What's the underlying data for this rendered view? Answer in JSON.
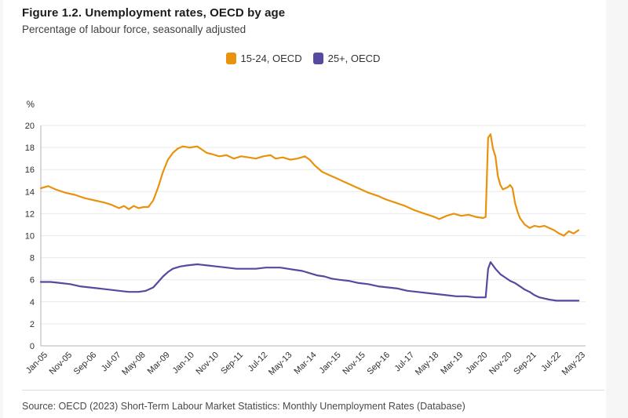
{
  "header": {
    "title": "Figure 1.2. Unemployment rates, OECD by age",
    "subtitle": "Percentage of labour force, seasonally adjusted"
  },
  "legend": {
    "items": [
      {
        "label": "15-24, OECD",
        "color": "#e8920d"
      },
      {
        "label": "25+, OECD",
        "color": "#544a9f"
      }
    ]
  },
  "source": "Source: OECD (2023) Short-Term Labour Market Statistics: Monthly Unemployment Rates (Database)",
  "colors": {
    "grid": "#e9e9e9",
    "axis": "#b3b3b3",
    "tick_text": "#2e2e2e",
    "page_margin": "#f6f6f6"
  },
  "chart_data": {
    "type": "line",
    "title": "Figure 1.2. Unemployment rates, OECD by age",
    "subtitle": "Percentage of labour force, seasonally adjusted",
    "ylabel": "%",
    "ylim": [
      0,
      20
    ],
    "ytick_step": 2,
    "y_ticks": [
      0,
      2,
      4,
      6,
      8,
      10,
      12,
      14,
      16,
      18,
      20
    ],
    "grid": "horizontal",
    "legend_position": "top",
    "x_start": "Jan-05",
    "x_end": "May-23",
    "x_ticks": [
      "Jan-05",
      "Nov-05",
      "Sep-06",
      "Jul-07",
      "May-08",
      "Mar-09",
      "Jan-10",
      "Nov-10",
      "Sep-11",
      "Jul-12",
      "May-13",
      "Mar-14",
      "Jan-15",
      "Nov-15",
      "Sep-16",
      "Jul-17",
      "May-18",
      "Mar-19",
      "Jan-20",
      "Nov-20",
      "Sep-21",
      "Jul-22",
      "May-23"
    ],
    "series": [
      {
        "name": "15-24, OECD",
        "color": "#e8920d",
        "points": [
          [
            "Jan-05",
            14.3
          ],
          [
            "Apr-05",
            14.5
          ],
          [
            "Jul-05",
            14.2
          ],
          [
            "Nov-05",
            13.9
          ],
          [
            "Mar-06",
            13.7
          ],
          [
            "Jul-06",
            13.4
          ],
          [
            "Nov-06",
            13.2
          ],
          [
            "Mar-07",
            13.0
          ],
          [
            "Jun-07",
            12.8
          ],
          [
            "Sep-07",
            12.5
          ],
          [
            "Nov-07",
            12.7
          ],
          [
            "Jan-08",
            12.4
          ],
          [
            "Mar-08",
            12.7
          ],
          [
            "May-08",
            12.5
          ],
          [
            "Jul-08",
            12.6
          ],
          [
            "Sep-08",
            12.6
          ],
          [
            "Nov-08",
            13.2
          ],
          [
            "Jan-09",
            14.4
          ],
          [
            "Mar-09",
            15.8
          ],
          [
            "May-09",
            16.9
          ],
          [
            "Jul-09",
            17.5
          ],
          [
            "Sep-09",
            17.9
          ],
          [
            "Nov-09",
            18.1
          ],
          [
            "Feb-10",
            18.0
          ],
          [
            "May-10",
            18.1
          ],
          [
            "Jul-10",
            17.8
          ],
          [
            "Sep-10",
            17.5
          ],
          [
            "Nov-10",
            17.4
          ],
          [
            "Feb-11",
            17.2
          ],
          [
            "May-11",
            17.3
          ],
          [
            "Aug-11",
            17.0
          ],
          [
            "Nov-11",
            17.2
          ],
          [
            "Feb-12",
            17.1
          ],
          [
            "May-12",
            17.0
          ],
          [
            "Aug-12",
            17.2
          ],
          [
            "Nov-12",
            17.3
          ],
          [
            "Jan-13",
            17.0
          ],
          [
            "Apr-13",
            17.1
          ],
          [
            "Jul-13",
            16.9
          ],
          [
            "Oct-13",
            17.0
          ],
          [
            "Jan-14",
            17.2
          ],
          [
            "Mar-14",
            16.9
          ],
          [
            "May-14",
            16.4
          ],
          [
            "Aug-14",
            15.8
          ],
          [
            "Nov-14",
            15.5
          ],
          [
            "Feb-15",
            15.2
          ],
          [
            "May-15",
            14.9
          ],
          [
            "Aug-15",
            14.6
          ],
          [
            "Nov-15",
            14.3
          ],
          [
            "Mar-16",
            13.9
          ],
          [
            "Jul-16",
            13.6
          ],
          [
            "Oct-16",
            13.3
          ],
          [
            "Feb-17",
            13.0
          ],
          [
            "Jun-17",
            12.7
          ],
          [
            "Oct-17",
            12.3
          ],
          [
            "Feb-18",
            12.0
          ],
          [
            "Jun-18",
            11.7
          ],
          [
            "Aug-18",
            11.5
          ],
          [
            "Nov-18",
            11.8
          ],
          [
            "Feb-19",
            12.0
          ],
          [
            "May-19",
            11.8
          ],
          [
            "Aug-19",
            11.9
          ],
          [
            "Nov-19",
            11.7
          ],
          [
            "Feb-20",
            11.6
          ],
          [
            "Mar-20",
            11.7
          ],
          [
            "Apr-20",
            18.9
          ],
          [
            "May-20",
            19.2
          ],
          [
            "Jun-20",
            17.9
          ],
          [
            "Jul-20",
            17.2
          ],
          [
            "Aug-20",
            15.4
          ],
          [
            "Sep-20",
            14.6
          ],
          [
            "Oct-20",
            14.2
          ],
          [
            "Dec-20",
            14.4
          ],
          [
            "Jan-21",
            14.6
          ],
          [
            "Feb-21",
            14.3
          ],
          [
            "Mar-21",
            13.0
          ],
          [
            "Apr-21",
            12.2
          ],
          [
            "May-21",
            11.6
          ],
          [
            "Jul-21",
            11.0
          ],
          [
            "Sep-21",
            10.7
          ],
          [
            "Nov-21",
            10.9
          ],
          [
            "Jan-22",
            10.8
          ],
          [
            "Mar-22",
            10.9
          ],
          [
            "May-22",
            10.7
          ],
          [
            "Jul-22",
            10.5
          ],
          [
            "Sep-22",
            10.2
          ],
          [
            "Nov-22",
            10.0
          ],
          [
            "Jan-23",
            10.4
          ],
          [
            "Mar-23",
            10.2
          ],
          [
            "May-23",
            10.5
          ]
        ]
      },
      {
        "name": "25+, OECD",
        "color": "#544a9f",
        "points": [
          [
            "Jan-05",
            5.8
          ],
          [
            "May-05",
            5.8
          ],
          [
            "Sep-05",
            5.7
          ],
          [
            "Jan-06",
            5.6
          ],
          [
            "May-06",
            5.4
          ],
          [
            "Sep-06",
            5.3
          ],
          [
            "Jan-07",
            5.2
          ],
          [
            "May-07",
            5.1
          ],
          [
            "Sep-07",
            5.0
          ],
          [
            "Jan-08",
            4.9
          ],
          [
            "May-08",
            4.9
          ],
          [
            "Aug-08",
            5.0
          ],
          [
            "Nov-08",
            5.3
          ],
          [
            "Jan-09",
            5.8
          ],
          [
            "Mar-09",
            6.3
          ],
          [
            "May-09",
            6.7
          ],
          [
            "Jul-09",
            7.0
          ],
          [
            "Oct-09",
            7.2
          ],
          [
            "Jan-10",
            7.3
          ],
          [
            "May-10",
            7.4
          ],
          [
            "Sep-10",
            7.3
          ],
          [
            "Jan-11",
            7.2
          ],
          [
            "May-11",
            7.1
          ],
          [
            "Sep-11",
            7.0
          ],
          [
            "Jan-12",
            7.0
          ],
          [
            "May-12",
            7.0
          ],
          [
            "Sep-12",
            7.1
          ],
          [
            "Dec-12",
            7.1
          ],
          [
            "Mar-13",
            7.1
          ],
          [
            "Jun-13",
            7.0
          ],
          [
            "Sep-13",
            6.9
          ],
          [
            "Dec-13",
            6.8
          ],
          [
            "Mar-14",
            6.6
          ],
          [
            "Jun-14",
            6.4
          ],
          [
            "Sep-14",
            6.3
          ],
          [
            "Dec-14",
            6.1
          ],
          [
            "Mar-15",
            6.0
          ],
          [
            "Jul-15",
            5.9
          ],
          [
            "Nov-15",
            5.7
          ],
          [
            "Mar-16",
            5.6
          ],
          [
            "Jul-16",
            5.4
          ],
          [
            "Nov-16",
            5.3
          ],
          [
            "Mar-17",
            5.2
          ],
          [
            "Jul-17",
            5.0
          ],
          [
            "Nov-17",
            4.9
          ],
          [
            "Mar-18",
            4.8
          ],
          [
            "Jul-18",
            4.7
          ],
          [
            "Nov-18",
            4.6
          ],
          [
            "Mar-19",
            4.5
          ],
          [
            "Jul-19",
            4.5
          ],
          [
            "Nov-19",
            4.4
          ],
          [
            "Mar-20",
            4.4
          ],
          [
            "Apr-20",
            7.0
          ],
          [
            "May-20",
            7.6
          ],
          [
            "Jun-20",
            7.3
          ],
          [
            "Jul-20",
            7.0
          ],
          [
            "Sep-20",
            6.5
          ],
          [
            "Nov-20",
            6.2
          ],
          [
            "Jan-21",
            5.9
          ],
          [
            "Mar-21",
            5.7
          ],
          [
            "May-21",
            5.4
          ],
          [
            "Jul-21",
            5.1
          ],
          [
            "Sep-21",
            4.9
          ],
          [
            "Nov-21",
            4.6
          ],
          [
            "Jan-22",
            4.4
          ],
          [
            "Mar-22",
            4.3
          ],
          [
            "May-22",
            4.2
          ],
          [
            "Aug-22",
            4.1
          ],
          [
            "Nov-22",
            4.1
          ],
          [
            "Feb-23",
            4.1
          ],
          [
            "May-23",
            4.1
          ]
        ]
      }
    ]
  }
}
